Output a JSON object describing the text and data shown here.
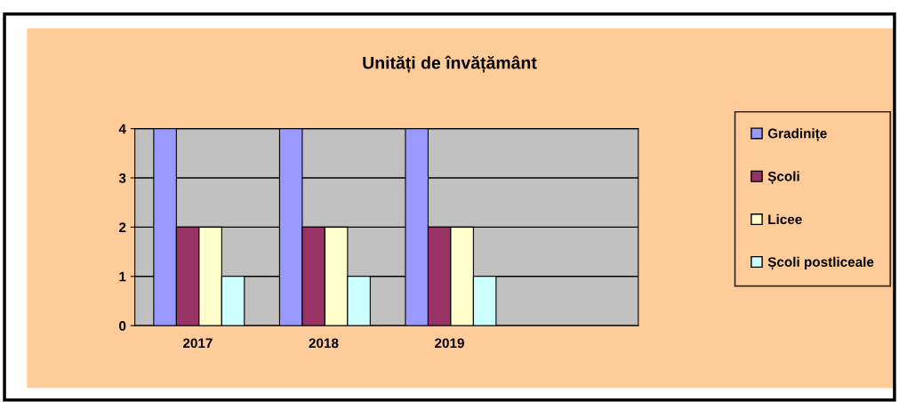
{
  "chart_data": {
    "type": "bar",
    "title": "Unități de învățământ",
    "categories": [
      "2017",
      "2018",
      "2019",
      null
    ],
    "series": [
      {
        "name": "Gradinițe",
        "color": "#9999ff",
        "values": [
          4,
          4,
          4,
          null
        ]
      },
      {
        "name": "Școli",
        "color": "#993366",
        "values": [
          2,
          2,
          2,
          null
        ]
      },
      {
        "name": "Licee",
        "color": "#ffffcc",
        "values": [
          2,
          2,
          2,
          null
        ]
      },
      {
        "name": "Școli postliceale",
        "color": "#ccffff",
        "values": [
          1,
          1,
          1,
          null
        ]
      }
    ],
    "ylim": [
      0,
      4
    ],
    "yticks": [
      0,
      1,
      2,
      3,
      4
    ],
    "grid": "y",
    "legend": "right"
  }
}
